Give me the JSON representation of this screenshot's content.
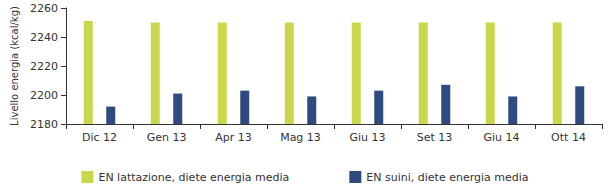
{
  "chart_data": {
    "type": "bar",
    "y_label": "Livello energia (kcal/kg)",
    "categories": [
      "Dic 12",
      "Gen 13",
      "Apr 13",
      "Mag 13",
      "Giu 13",
      "Set 13",
      "Giu 14",
      "Ott 14"
    ],
    "series": [
      {
        "name": "EN lattazione, diete energia media",
        "color": "#c9d84a",
        "values": [
          2251,
          2250,
          2250,
          2250,
          2250,
          2250,
          2250,
          2250
        ]
      },
      {
        "name": "EN suini, diete energia media",
        "color": "#2e4a7f",
        "values": [
          2192,
          2201,
          2203,
          2199,
          2203,
          2207,
          2199,
          2206
        ]
      }
    ],
    "ylim": [
      2180,
      2260
    ],
    "yticks": [
      2180,
      2200,
      2220,
      2240,
      2260
    ],
    "grid": false,
    "legend": "bottom"
  }
}
